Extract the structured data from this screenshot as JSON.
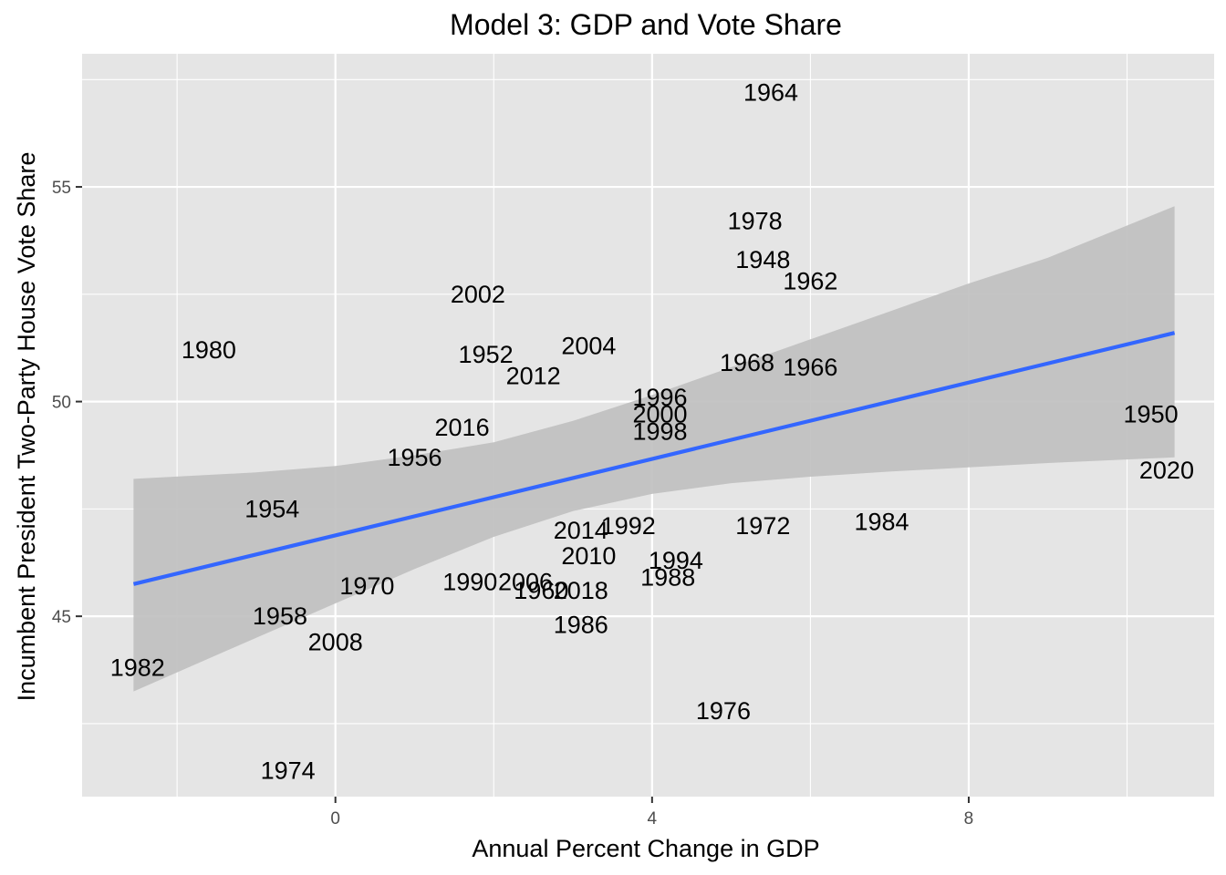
{
  "chart_data": {
    "type": "scatter",
    "title": "Model 3: GDP and Vote Share",
    "xlabel": "Annual Percent Change in GDP",
    "ylabel": "Incumbent President Two-Party House Vote Share",
    "xlim": [
      -3.2,
      11.1
    ],
    "ylim": [
      40.8,
      58.1
    ],
    "x_ticks": [
      0,
      4,
      8
    ],
    "y_ticks": [
      45,
      50,
      55
    ],
    "x_tick_labels": [
      "0",
      "4",
      "8"
    ],
    "y_tick_labels": [
      "45",
      "50",
      "55"
    ],
    "grid": true,
    "point_labels_as_text": true,
    "points": [
      {
        "label": "1964",
        "x": 5.5,
        "y": 57.2
      },
      {
        "label": "1978",
        "x": 5.3,
        "y": 54.2
      },
      {
        "label": "1948",
        "x": 5.4,
        "y": 53.3
      },
      {
        "label": "1962",
        "x": 6.0,
        "y": 52.8
      },
      {
        "label": "2002",
        "x": 1.8,
        "y": 52.5
      },
      {
        "label": "1980",
        "x": -1.6,
        "y": 51.2
      },
      {
        "label": "2004",
        "x": 3.2,
        "y": 51.3
      },
      {
        "label": "1952",
        "x": 1.9,
        "y": 51.1
      },
      {
        "label": "2012",
        "x": 2.5,
        "y": 50.6
      },
      {
        "label": "1968",
        "x": 5.2,
        "y": 50.9
      },
      {
        "label": "1966",
        "x": 6.0,
        "y": 50.8
      },
      {
        "label": "1996",
        "x": 4.1,
        "y": 50.1
      },
      {
        "label": "2000",
        "x": 4.1,
        "y": 49.7
      },
      {
        "label": "1998",
        "x": 4.1,
        "y": 49.3
      },
      {
        "label": "1950",
        "x": 10.3,
        "y": 49.7
      },
      {
        "label": "2016",
        "x": 1.6,
        "y": 49.4
      },
      {
        "label": "1956",
        "x": 1.0,
        "y": 48.7
      },
      {
        "label": "2020",
        "x": 10.5,
        "y": 48.4
      },
      {
        "label": "1954",
        "x": -0.8,
        "y": 47.5
      },
      {
        "label": "2014",
        "x": 3.1,
        "y": 47.0
      },
      {
        "label": "1992",
        "x": 3.7,
        "y": 47.1
      },
      {
        "label": "1972",
        "x": 5.4,
        "y": 47.1
      },
      {
        "label": "1984",
        "x": 6.9,
        "y": 47.2
      },
      {
        "label": "2010",
        "x": 3.2,
        "y": 46.4
      },
      {
        "label": "1994",
        "x": 4.3,
        "y": 46.3
      },
      {
        "label": "1988",
        "x": 4.2,
        "y": 45.9
      },
      {
        "label": "1970",
        "x": 0.4,
        "y": 45.7
      },
      {
        "label": "1990",
        "x": 1.7,
        "y": 45.8
      },
      {
        "label": "2006",
        "x": 2.4,
        "y": 45.8
      },
      {
        "label": "1960",
        "x": 2.6,
        "y": 45.6
      },
      {
        "label": "2018",
        "x": 3.1,
        "y": 45.6
      },
      {
        "label": "1958",
        "x": -0.7,
        "y": 45.0
      },
      {
        "label": "2008",
        "x": 0.0,
        "y": 44.4
      },
      {
        "label": "1986",
        "x": 3.1,
        "y": 44.8
      },
      {
        "label": "1982",
        "x": -2.5,
        "y": 43.8
      },
      {
        "label": "1976",
        "x": 4.9,
        "y": 42.8
      },
      {
        "label": "1974",
        "x": -0.6,
        "y": 41.4
      }
    ],
    "trend_line": {
      "type": "linear",
      "color": "#3366ff",
      "x": [
        -2.55,
        10.6
      ],
      "y": [
        45.75,
        51.6
      ]
    },
    "confidence_band": {
      "fill": "#bfbfbf",
      "x": [
        -2.55,
        -1.0,
        0.0,
        1.0,
        2.0,
        3.0,
        4.0,
        5.0,
        6.0,
        7.0,
        8.0,
        9.0,
        10.6
      ],
      "lower": [
        43.25,
        44.5,
        45.3,
        46.1,
        46.85,
        47.45,
        47.85,
        48.1,
        48.25,
        48.37,
        48.47,
        48.57,
        48.7
      ],
      "upper": [
        48.2,
        48.35,
        48.5,
        48.75,
        49.05,
        49.55,
        50.15,
        50.8,
        51.45,
        52.1,
        52.75,
        53.35,
        54.55
      ]
    },
    "colors": {
      "panel_background": "#e5e5e5",
      "grid": "#ffffff",
      "line": "#3366ff",
      "band": "#bfbfbf",
      "text": "#000000",
      "tick_text": "#4d4d4d"
    }
  }
}
